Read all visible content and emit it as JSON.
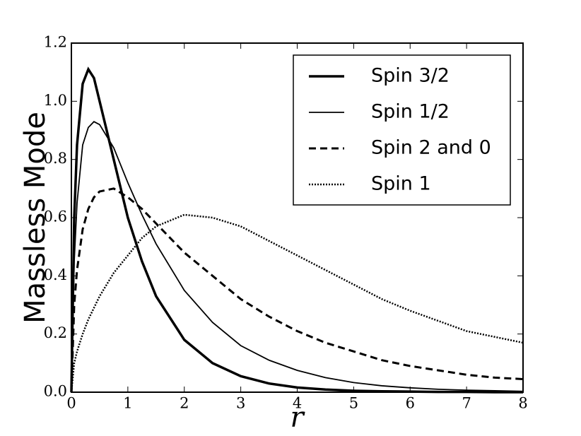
{
  "chart_data": {
    "type": "line",
    "x_label": "r",
    "y_label": "Massless Mode",
    "x": [
      0,
      0.05,
      0.1,
      0.2,
      0.3,
      0.4,
      0.5,
      0.75,
      1,
      1.25,
      1.5,
      2,
      2.5,
      3,
      3.5,
      4,
      4.5,
      5,
      5.5,
      6,
      6.5,
      7,
      7.5,
      8
    ],
    "series": [
      {
        "name": "Spin 3/2",
        "color": "#000000",
        "linewidth": 3.5,
        "dash": "solid",
        "values": [
          0,
          0.6,
          0.85,
          1.06,
          1.11,
          1.08,
          1.0,
          0.8,
          0.6,
          0.45,
          0.33,
          0.18,
          0.1,
          0.055,
          0.03,
          0.016,
          0.009,
          0.005,
          0.003,
          0.002,
          0.001,
          0.001,
          0,
          0
        ]
      },
      {
        "name": "Spin 1/2",
        "color": "#000000",
        "linewidth": 1.8,
        "dash": "solid",
        "values": [
          0,
          0.45,
          0.65,
          0.85,
          0.91,
          0.93,
          0.92,
          0.84,
          0.72,
          0.61,
          0.51,
          0.35,
          0.24,
          0.16,
          0.11,
          0.075,
          0.05,
          0.033,
          0.022,
          0.015,
          0.01,
          0.007,
          0.005,
          0.003
        ]
      },
      {
        "name": "Spin 2 and 0",
        "color": "#000000",
        "linewidth": 3,
        "dash": "dashed",
        "values": [
          0,
          0.3,
          0.42,
          0.56,
          0.63,
          0.67,
          0.69,
          0.7,
          0.67,
          0.63,
          0.58,
          0.48,
          0.4,
          0.32,
          0.26,
          0.21,
          0.17,
          0.14,
          0.11,
          0.09,
          0.075,
          0.06,
          0.05,
          0.045
        ]
      },
      {
        "name": "Spin 1",
        "color": "#000000",
        "linewidth": 2.5,
        "dash": "dotted",
        "values": [
          0,
          0.1,
          0.14,
          0.2,
          0.25,
          0.29,
          0.33,
          0.41,
          0.47,
          0.53,
          0.57,
          0.61,
          0.6,
          0.57,
          0.52,
          0.47,
          0.42,
          0.37,
          0.32,
          0.28,
          0.245,
          0.21,
          0.19,
          0.17
        ]
      }
    ],
    "xlim": [
      0,
      8
    ],
    "ylim": [
      0,
      1.2
    ],
    "xticks": [
      0,
      1,
      2,
      3,
      4,
      5,
      6,
      7,
      8
    ],
    "yticks": [
      {
        "value": 0,
        "label": "0.0"
      },
      {
        "value": 0.2,
        "label": "0.2"
      },
      {
        "value": 0.4,
        "label": "0.4"
      },
      {
        "value": 0.6,
        "label": "0.6"
      },
      {
        "value": 0.8,
        "label": "0.8"
      },
      {
        "value": 1.0,
        "label": "1.0"
      },
      {
        "value": 1.2,
        "label": "1.2"
      }
    ],
    "legend": "upper right",
    "grid": false
  }
}
